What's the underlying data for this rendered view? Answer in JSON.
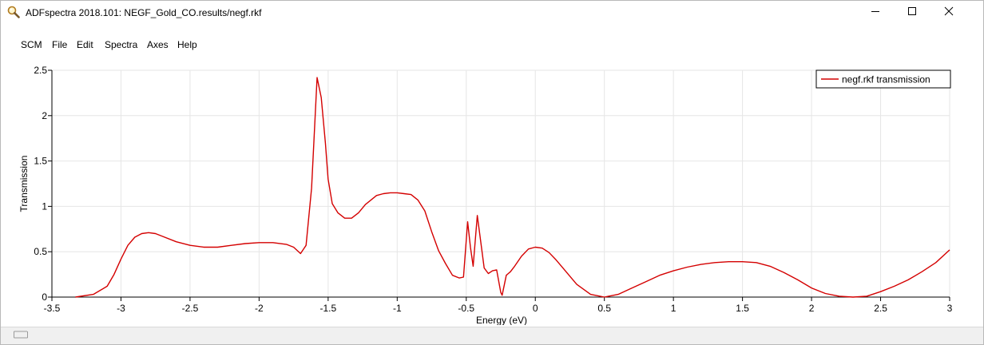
{
  "window": {
    "title": "ADFspectra 2018.101: NEGF_Gold_CO.results/negf.rkf"
  },
  "menu": {
    "items": [
      {
        "label": "SCM"
      },
      {
        "label": "File"
      },
      {
        "label": "Edit"
      },
      {
        "label": "Spectra"
      },
      {
        "label": "Axes"
      },
      {
        "label": "Help"
      }
    ]
  },
  "colors": {
    "series": "#d40000",
    "grid": "#e6e6e6",
    "axis": "#000000"
  },
  "chart_data": {
    "type": "line",
    "title": "",
    "xlabel": "Energy (eV)",
    "ylabel": "Transmission",
    "xlim": [
      -3.5,
      3
    ],
    "ylim": [
      0,
      2.5
    ],
    "xticks": [
      {
        "value": -3.5,
        "label": "-3.5"
      },
      {
        "value": -3,
        "label": "-3"
      },
      {
        "value": -2.5,
        "label": "-2.5"
      },
      {
        "value": -2,
        "label": "-2"
      },
      {
        "value": -1.5,
        "label": "-1.5"
      },
      {
        "value": -1,
        "label": "-1"
      },
      {
        "value": -0.5,
        "label": "-0.5"
      },
      {
        "value": 0,
        "label": "0"
      },
      {
        "value": 0.5,
        "label": "0.5"
      },
      {
        "value": 1,
        "label": "1"
      },
      {
        "value": 1.5,
        "label": "1.5"
      },
      {
        "value": 2,
        "label": "2"
      },
      {
        "value": 2.5,
        "label": "2.5"
      },
      {
        "value": 3,
        "label": "3"
      }
    ],
    "yticks": [
      {
        "value": 0,
        "label": "0"
      },
      {
        "value": 0.5,
        "label": "0.5"
      },
      {
        "value": 1,
        "label": "1"
      },
      {
        "value": 1.5,
        "label": "1.5"
      },
      {
        "value": 2,
        "label": "2"
      },
      {
        "value": 2.5,
        "label": "2.5"
      }
    ],
    "grid": true,
    "legend_position": "top-right",
    "series": [
      {
        "name": "negf.rkf transmission",
        "x": [
          -3.33,
          -3.2,
          -3.1,
          -3.05,
          -3.0,
          -2.95,
          -2.9,
          -2.85,
          -2.8,
          -2.75,
          -2.7,
          -2.6,
          -2.5,
          -2.4,
          -2.3,
          -2.2,
          -2.1,
          -2.0,
          -1.9,
          -1.8,
          -1.75,
          -1.7,
          -1.66,
          -1.62,
          -1.58,
          -1.55,
          -1.52,
          -1.5,
          -1.47,
          -1.43,
          -1.38,
          -1.33,
          -1.28,
          -1.23,
          -1.15,
          -1.1,
          -1.05,
          -1.0,
          -0.95,
          -0.9,
          -0.85,
          -0.8,
          -0.75,
          -0.7,
          -0.65,
          -0.6,
          -0.55,
          -0.52,
          -0.49,
          -0.47,
          -0.45,
          -0.42,
          -0.39,
          -0.37,
          -0.34,
          -0.31,
          -0.28,
          -0.25,
          -0.24,
          -0.21,
          -0.18,
          -0.15,
          -0.1,
          -0.05,
          0.0,
          0.05,
          0.1,
          0.15,
          0.2,
          0.3,
          0.4,
          0.5,
          0.6,
          0.7,
          0.8,
          0.9,
          1.0,
          1.1,
          1.2,
          1.3,
          1.4,
          1.5,
          1.6,
          1.7,
          1.8,
          1.9,
          2.0,
          2.1,
          2.2,
          2.3,
          2.4,
          2.5,
          2.6,
          2.7,
          2.8,
          2.9,
          3.0
        ],
        "y": [
          0.0,
          0.03,
          0.12,
          0.25,
          0.42,
          0.57,
          0.66,
          0.7,
          0.71,
          0.7,
          0.67,
          0.61,
          0.57,
          0.55,
          0.55,
          0.57,
          0.59,
          0.6,
          0.6,
          0.58,
          0.55,
          0.48,
          0.57,
          1.2,
          2.42,
          2.2,
          1.7,
          1.3,
          1.03,
          0.93,
          0.87,
          0.87,
          0.93,
          1.02,
          1.12,
          1.14,
          1.15,
          1.15,
          1.14,
          1.13,
          1.07,
          0.95,
          0.72,
          0.51,
          0.37,
          0.24,
          0.21,
          0.22,
          0.83,
          0.55,
          0.34,
          0.9,
          0.55,
          0.32,
          0.26,
          0.29,
          0.3,
          0.05,
          0.02,
          0.24,
          0.28,
          0.34,
          0.45,
          0.53,
          0.55,
          0.54,
          0.49,
          0.41,
          0.32,
          0.14,
          0.03,
          0.0,
          0.03,
          0.1,
          0.17,
          0.24,
          0.29,
          0.33,
          0.36,
          0.38,
          0.39,
          0.39,
          0.38,
          0.34,
          0.27,
          0.19,
          0.1,
          0.04,
          0.01,
          0.0,
          0.01,
          0.06,
          0.12,
          0.19,
          0.28,
          0.38,
          0.52
        ]
      }
    ]
  }
}
